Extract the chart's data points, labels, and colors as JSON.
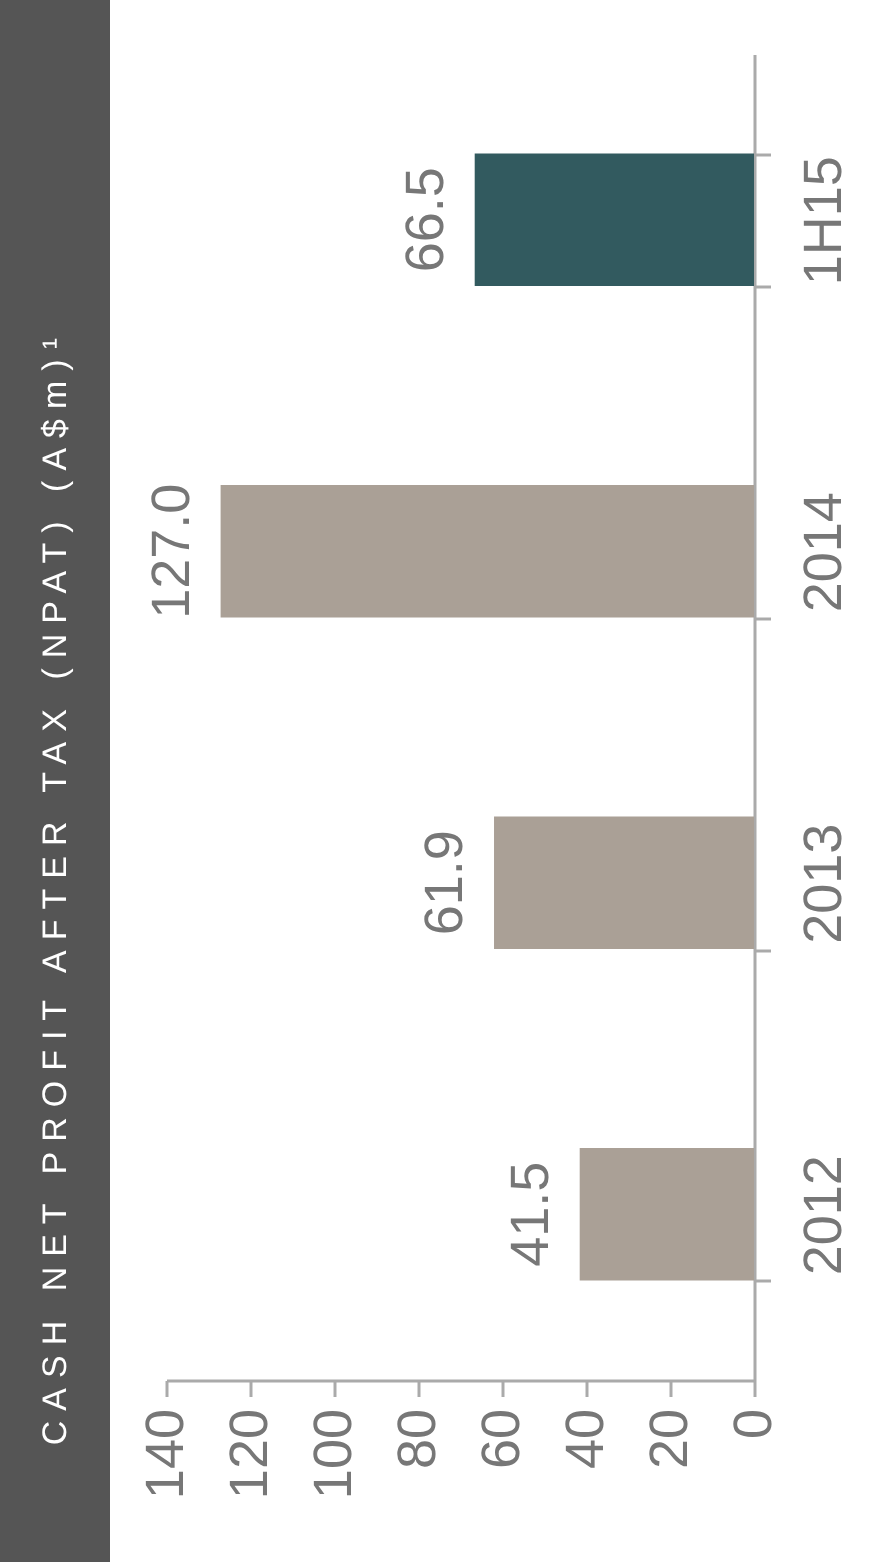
{
  "chart_data": {
    "type": "bar",
    "orientation": "horizontal",
    "title": "CASH NET PROFIT AFTER TAX (NPAT) (A$m)¹",
    "categories": [
      "1H15",
      "2014",
      "2013",
      "2012"
    ],
    "values": [
      66.5,
      127.0,
      61.9,
      41.5
    ],
    "value_labels": [
      "66.5",
      "127.0",
      "61.9",
      "41.5"
    ],
    "colors": [
      "#325a5f",
      "#aaa096",
      "#aaa096",
      "#aaa096"
    ],
    "xlim": [
      140,
      0
    ],
    "xticks": [
      140,
      120,
      100,
      80,
      60,
      40,
      20,
      0
    ]
  }
}
